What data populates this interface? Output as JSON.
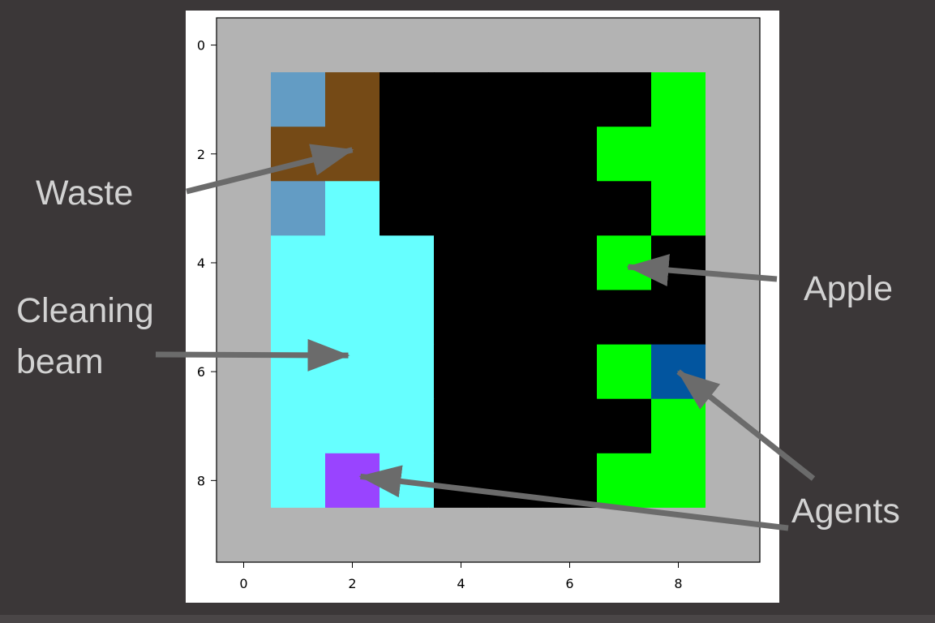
{
  "chart_data": {
    "type": "heatmap",
    "x_ticks": [
      "0",
      "2",
      "4",
      "6",
      "8"
    ],
    "y_ticks": [
      "0",
      "2",
      "4",
      "6",
      "8"
    ],
    "xlim": [
      -0.5,
      9.5
    ],
    "ylim": [
      9.5,
      -0.5
    ],
    "grid": false,
    "legend": "none",
    "palette": {
      "W": "#b3b3b3",
      "K": "#000000",
      "G": "#00ff00",
      "C": "#66ffff",
      "L": "#639cc4",
      "B": "#754a16",
      "P": "#9944ff",
      "D": "#02559f"
    },
    "grid_rows": [
      "WWWWWWWWWW",
      "WLBKKKKKGW",
      "WBBKKKKGGW",
      "WLCKKKKKGW",
      "WCCCKKKGKW",
      "WCCCKKKKKW",
      "WCCCKKKGDW",
      "WCCCKKKKGW",
      "WCPCKKKGGW",
      "WWWWWWWWWW"
    ]
  },
  "annotations": [
    {
      "label": "Waste",
      "target_row": 2,
      "target_col": 2
    },
    {
      "label_lines": [
        "Cleaning",
        "beam"
      ],
      "target_row": 6,
      "target_col": 2
    },
    {
      "label": "Apple",
      "target_row": 4,
      "target_col": 7
    },
    {
      "label": "Agents",
      "targets": [
        {
          "row": 6,
          "col": 8
        },
        {
          "row": 8,
          "col": 2
        }
      ]
    }
  ],
  "colors": {
    "background": "#3b3738",
    "arrow": "#6b6b6b",
    "callout_text": "#d2d2d2"
  }
}
